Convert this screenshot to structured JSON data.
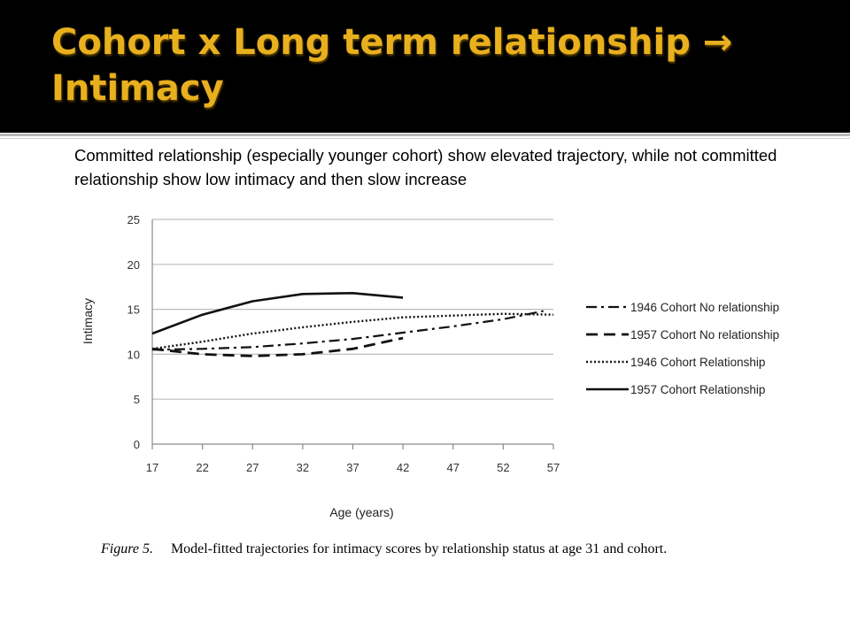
{
  "slide": {
    "title": "Cohort x Long term relationship → Intimacy",
    "subtitle": "Committed relationship (especially younger cohort) show elevated trajectory, while not committed relationship show low intimacy and then slow increase",
    "title_color": "#e8b01e",
    "header_bg": "#000000"
  },
  "caption": {
    "figure_label": "Figure 5.",
    "text": "Model-fitted trajectories for intimacy scores by relationship status at age 31 and cohort."
  },
  "chart_data": {
    "type": "line",
    "xlabel": "Age (years)",
    "ylabel": "Intimacy",
    "xlim": [
      17,
      57
    ],
    "ylim": [
      0,
      25
    ],
    "xticks": [
      17,
      22,
      27,
      32,
      37,
      42,
      47,
      52,
      57
    ],
    "yticks": [
      0,
      5,
      10,
      15,
      20,
      25
    ],
    "grid": "horizontal",
    "legend_position": "right",
    "series": [
      {
        "name": "1946 Cohort No relationship",
        "style": "dash-dot",
        "x": [
          17,
          22,
          27,
          32,
          37,
          42,
          47,
          52,
          56
        ],
        "y": [
          10.5,
          10.6,
          10.8,
          11.2,
          11.7,
          12.4,
          13.1,
          13.9,
          14.8
        ]
      },
      {
        "name": "1957 Cohort No relationship",
        "style": "dashed",
        "x": [
          17,
          22,
          27,
          32,
          37,
          42
        ],
        "y": [
          10.6,
          10.0,
          9.8,
          10.0,
          10.6,
          11.8
        ]
      },
      {
        "name": "1946 Cohort Relationship",
        "style": "dotted",
        "x": [
          17,
          22,
          27,
          32,
          37,
          42,
          47,
          52,
          57
        ],
        "y": [
          10.6,
          11.4,
          12.3,
          13.0,
          13.6,
          14.1,
          14.3,
          14.5,
          14.4
        ]
      },
      {
        "name": "1957 Cohort Relationship",
        "style": "solid",
        "x": [
          17,
          22,
          27,
          32,
          37,
          42
        ],
        "y": [
          12.3,
          14.4,
          15.9,
          16.7,
          16.8,
          16.3
        ]
      }
    ]
  }
}
